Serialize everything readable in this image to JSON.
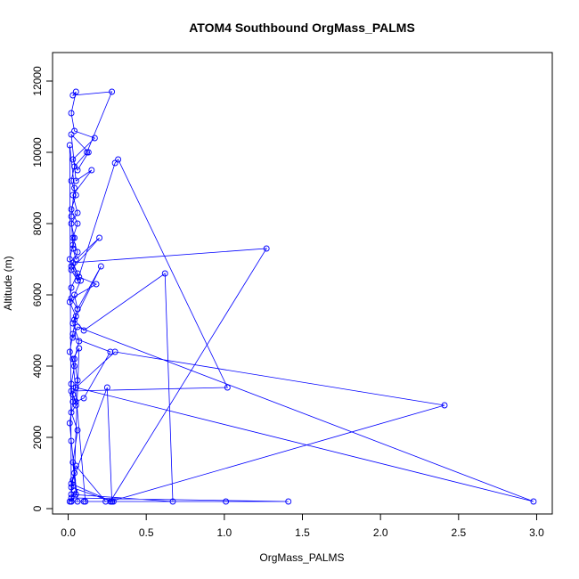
{
  "chart_data": {
    "type": "line",
    "title": "ATOM4 Southbound OrgMass_PALMS",
    "xlabel": "OrgMass_PALMS",
    "ylabel": "Altitude (m)",
    "xlim": [
      -0.1,
      3.1
    ],
    "ylim": [
      -150,
      12800
    ],
    "xticks": [
      0.0,
      0.5,
      1.0,
      1.5,
      2.0,
      2.5,
      3.0
    ],
    "xtick_labels": [
      "0.0",
      "0.5",
      "1.0",
      "1.5",
      "2.0",
      "2.5",
      "3.0"
    ],
    "yticks": [
      0,
      2000,
      4000,
      6000,
      8000,
      10000,
      12000
    ],
    "ytick_labels": [
      "0",
      "2000",
      "4000",
      "6000",
      "8000",
      "10000",
      "12000"
    ],
    "grid": false,
    "marker": "open-circle",
    "series_color": "#0000ff",
    "series": [
      {
        "x": [
          0.02,
          0.05,
          0.03,
          0.06,
          0.02,
          0.05,
          0.03,
          0.06,
          0.04,
          0.07,
          0.03,
          0.06,
          0.04,
          0.08,
          0.02,
          0.06,
          0.03,
          0.06,
          0.02,
          0.05,
          0.02,
          0.04,
          0.12,
          0.28,
          0.03,
          0.05,
          0.02,
          0.04,
          0.17,
          0.03,
          0.06,
          0.13,
          0.02,
          0.05,
          0.15,
          0.03,
          0.06,
          0.02,
          0.04,
          0.03,
          0.05,
          0.2,
          0.02,
          0.06,
          0.3,
          0.32,
          1.02,
          0.02,
          0.05,
          0.1,
          0.27,
          0.03,
          0.06,
          2.98,
          0.05,
          0.3,
          2.41,
          0.27,
          1.27,
          0.03,
          0.07,
          0.18,
          0.02,
          0.06,
          0.21,
          0.04,
          0.1,
          0.62,
          0.67,
          0.02,
          0.03,
          0.25,
          0.28,
          0.02,
          0.04,
          0.07,
          0.03,
          0.11,
          0.28,
          0.02,
          0.05,
          0.24,
          1.01,
          1.41,
          0.02,
          0.04,
          0.01,
          0.02,
          0.1,
          0.29,
          0.06,
          0.02,
          0.01,
          0.03,
          0.02,
          0.04,
          0.01,
          0.03,
          0.05,
          0.01,
          0.02,
          0.06,
          0.01,
          0.03,
          0.02,
          0.04,
          0.01,
          0.02
        ],
        "y": [
          200,
          400,
          1300,
          2200,
          2700,
          2900,
          3200,
          3600,
          4200,
          4700,
          5200,
          5600,
          6000,
          6400,
          6800,
          7200,
          7600,
          8000,
          8400,
          8800,
          9200,
          9600,
          10000,
          11700,
          11600,
          11700,
          11100,
          10600,
          10400,
          9800,
          9500,
          10000,
          10500,
          9200,
          9500,
          8800,
          8300,
          8000,
          7600,
          7300,
          7000,
          7600,
          6700,
          6400,
          9700,
          9800,
          3400,
          3300,
          3000,
          3100,
          4400,
          4800,
          5100,
          200,
          3400,
          4400,
          2900,
          200,
          7300,
          6900,
          6500,
          6300,
          5900,
          5600,
          6800,
          5300,
          5000,
          6600,
          200,
          400,
          800,
          3400,
          200,
          600,
          1000,
          4500,
          4200,
          200,
          200,
          700,
          1200,
          200,
          200,
          200,
          300,
          500,
          200,
          200,
          200,
          200,
          200,
          1900,
          2400,
          3000,
          3500,
          4000,
          4400,
          4900,
          5400,
          5800,
          6200,
          6600,
          7000,
          7400,
          8200,
          9000,
          10200,
          200
        ]
      }
    ]
  }
}
